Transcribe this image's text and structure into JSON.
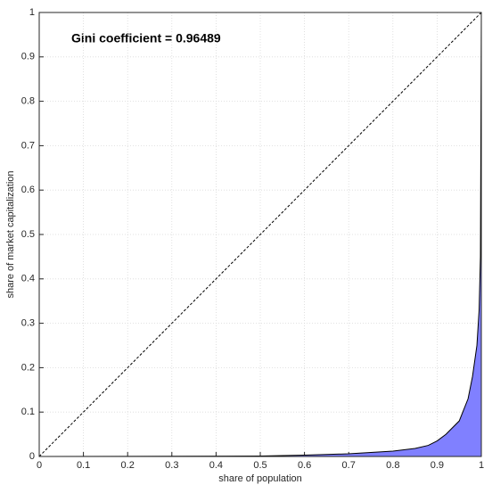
{
  "chart_data": {
    "type": "area",
    "annotation": "Gini coefficient = 0.96489",
    "xlabel": "share of population",
    "ylabel": "share of market capitalization",
    "xlim": [
      0,
      1
    ],
    "ylim": [
      0,
      1
    ],
    "xticks": [
      0,
      0.1,
      0.2,
      0.3,
      0.4,
      0.5,
      0.6,
      0.7,
      0.8,
      0.9,
      1
    ],
    "yticks": [
      0,
      0.1,
      0.2,
      0.3,
      0.4,
      0.5,
      0.6,
      0.7,
      0.8,
      0.9,
      1
    ],
    "grid": true,
    "series": [
      {
        "color": "#8080ff",
        "line_color": "#000000",
        "x": [
          0,
          0.5,
          0.6,
          0.7,
          0.8,
          0.85,
          0.88,
          0.9,
          0.92,
          0.95,
          0.97,
          0.98,
          0.99,
          0.995,
          0.998,
          1
        ],
        "values": [
          0,
          0.001,
          0.003,
          0.006,
          0.012,
          0.018,
          0.025,
          0.035,
          0.05,
          0.08,
          0.13,
          0.18,
          0.25,
          0.33,
          0.45,
          1
        ]
      },
      {
        "type": "line",
        "color": "#000000",
        "dashed": true,
        "x": [
          0,
          1
        ],
        "values": [
          0,
          1
        ]
      }
    ]
  }
}
